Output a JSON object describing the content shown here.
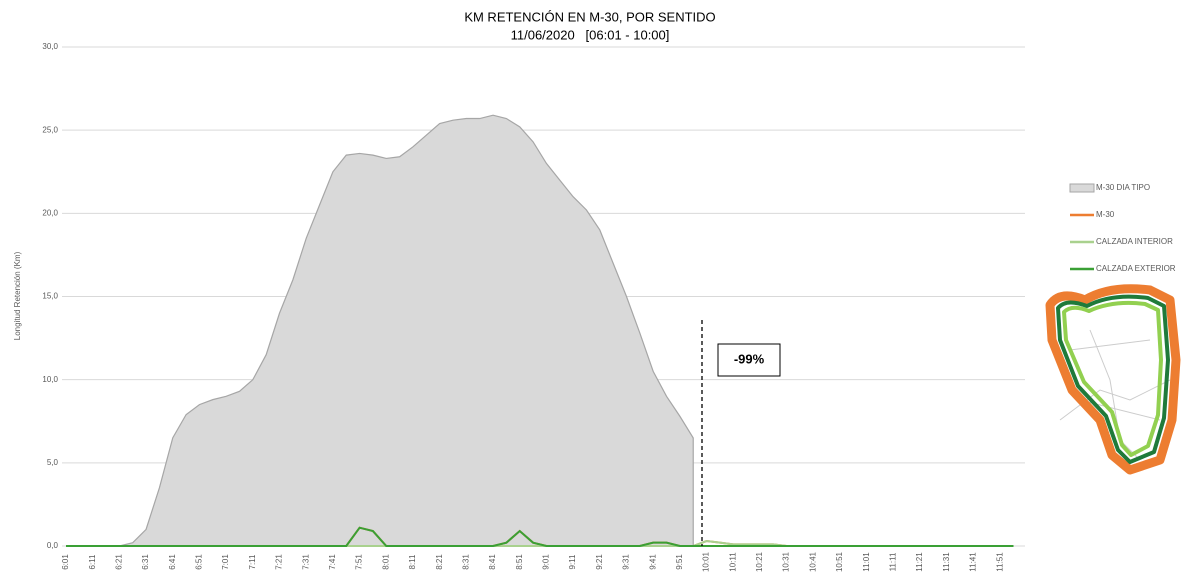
{
  "chart_data": {
    "type": "area-line",
    "title": "KM RETENCIÓN EN M-30, POR SENTIDO",
    "subtitle": "11/06/2020   [06:01 - 10:00]",
    "ylabel": "Longitud Retención (Km)",
    "annotation": "-99%",
    "categories": [
      "6:01",
      null,
      "6:11",
      null,
      "6:21",
      null,
      "6:31",
      null,
      "6:41",
      null,
      "6:51",
      null,
      "7:01",
      null,
      "7:11",
      null,
      "7:21",
      null,
      "7:31",
      null,
      "7:41",
      null,
      "7:51",
      null,
      "8:01",
      null,
      "8:11",
      null,
      "8:21",
      null,
      "8:31",
      null,
      "8:41",
      null,
      "8:51",
      null,
      "9:01",
      null,
      "9:11",
      null,
      "9:21",
      null,
      "9:31",
      null,
      "9:41",
      null,
      "9:51",
      null,
      "10:01",
      null,
      "10:11",
      null,
      "10:21",
      null,
      "10:31",
      null,
      "10:41",
      null,
      "10:51",
      null,
      "11:01",
      null,
      "11:11",
      null,
      "11:21",
      null,
      "11:31",
      null,
      "11:41",
      null,
      "11:51",
      null
    ],
    "ylim": [
      0,
      30
    ],
    "yticks": [
      {
        "value": 0,
        "label": "0,0"
      },
      {
        "value": 5,
        "label": "5,0"
      },
      {
        "value": 10,
        "label": "10,0"
      },
      {
        "value": 15,
        "label": "15,0"
      },
      {
        "value": 20,
        "label": "20,0"
      },
      {
        "value": 25,
        "label": "25,0"
      },
      {
        "value": 30,
        "label": "30,0"
      }
    ],
    "grid": true,
    "series": [
      {
        "name": "M-30 DIA TIPO",
        "color": "#d9d9d9",
        "style": "area",
        "values": [
          0,
          0,
          0,
          0,
          0,
          0.2,
          1.0,
          3.5,
          6.5,
          7.9,
          8.5,
          8.8,
          9.0,
          9.3,
          10.0,
          11.5,
          14.0,
          16.0,
          18.5,
          20.5,
          22.5,
          23.5,
          23.6,
          23.5,
          23.3,
          23.4,
          24.0,
          24.7,
          25.4,
          25.6,
          25.7,
          25.7,
          25.9,
          25.7,
          25.2,
          24.3,
          23.0,
          22.0,
          21.0,
          20.2,
          19.0,
          17.0,
          15.0,
          12.8,
          10.5,
          9.0,
          7.8,
          6.5,
          null,
          null,
          null,
          null,
          null,
          null,
          null,
          null,
          null,
          null,
          null,
          null,
          null,
          null,
          null,
          null,
          null,
          null,
          null,
          null,
          null,
          null,
          null,
          null
        ]
      },
      {
        "name": "M-30",
        "color": "#ed7d31",
        "style": "line",
        "values": [
          0,
          0,
          0,
          0,
          0,
          0,
          0,
          0,
          0,
          0,
          0,
          0,
          0,
          0,
          0,
          0,
          0,
          0,
          0,
          0,
          0,
          0,
          1.1,
          0.9,
          0,
          0,
          0,
          0,
          0,
          0,
          0,
          0,
          0,
          0.2,
          0.9,
          0.2,
          0,
          0,
          0,
          0,
          0,
          0,
          0,
          0,
          0.2,
          0.2,
          0,
          0,
          0.3,
          0.2,
          0.1,
          0.1,
          0.1,
          0.1,
          0,
          0,
          0,
          0,
          0,
          0,
          0,
          0,
          0,
          0,
          0,
          0,
          0,
          0,
          0,
          0,
          0,
          0
        ]
      },
      {
        "name": "CALZADA INTERIOR",
        "color": "#a9d18e",
        "style": "line",
        "values": [
          0,
          0,
          0,
          0,
          0,
          0,
          0,
          0,
          0,
          0,
          0,
          0,
          0,
          0,
          0,
          0,
          0,
          0,
          0,
          0,
          0,
          0,
          0,
          0,
          0,
          0,
          0,
          0,
          0,
          0,
          0,
          0,
          0,
          0,
          0,
          0,
          0,
          0,
          0,
          0,
          0,
          0,
          0,
          0,
          0,
          0,
          0,
          0,
          0.3,
          0.2,
          0.1,
          0.1,
          0.1,
          0.1,
          0,
          0,
          0,
          0,
          0,
          0,
          0,
          0,
          0,
          0,
          0,
          0,
          0,
          0,
          0,
          0,
          0,
          0
        ]
      },
      {
        "name": "CALZADA EXTERIOR",
        "color": "#3aa035",
        "style": "line",
        "values": [
          0,
          0,
          0,
          0,
          0,
          0,
          0,
          0,
          0,
          0,
          0,
          0,
          0,
          0,
          0,
          0,
          0,
          0,
          0,
          0,
          0,
          0,
          1.1,
          0.9,
          0,
          0,
          0,
          0,
          0,
          0,
          0,
          0,
          0,
          0.2,
          0.9,
          0.2,
          0,
          0,
          0,
          0,
          0,
          0,
          0,
          0,
          0.2,
          0.2,
          0,
          0,
          0,
          0,
          0,
          0,
          0,
          0,
          0,
          0,
          0,
          0,
          0,
          0,
          0,
          0,
          0,
          0,
          0,
          0,
          0,
          0,
          0,
          0,
          0,
          0
        ]
      }
    ]
  }
}
